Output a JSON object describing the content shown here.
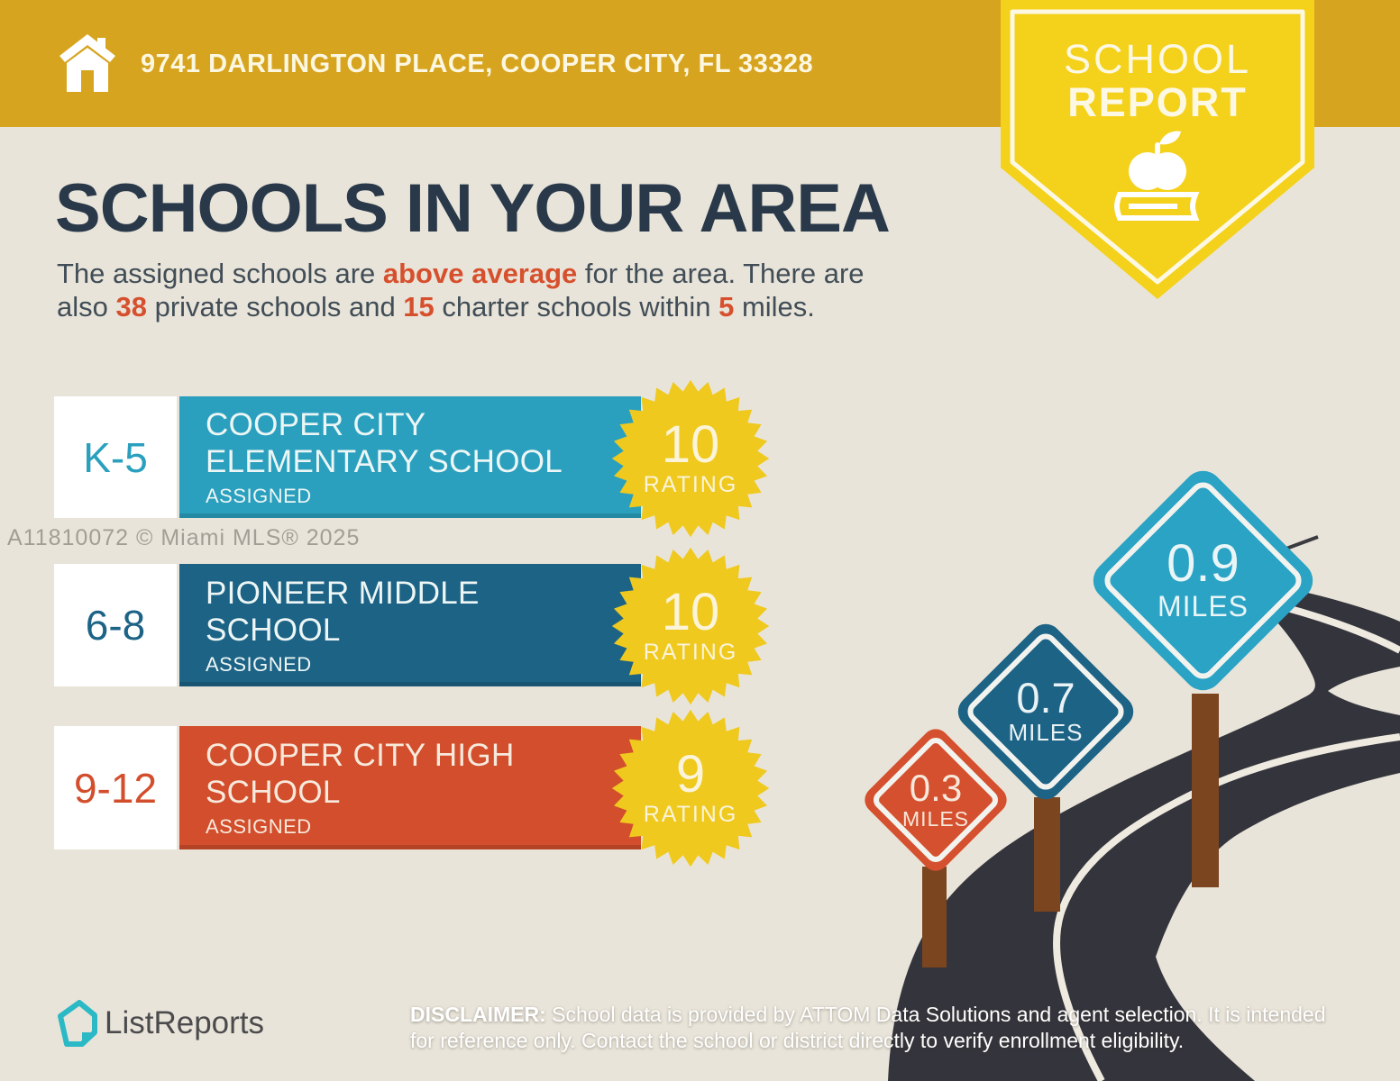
{
  "header": {
    "address": "9741 DARLINGTON PLACE, COOPER CITY, FL 33328"
  },
  "report_badge": {
    "line1": "SCHOOL",
    "line2": "REPORT",
    "icons": [
      "apple-icon",
      "book-icon"
    ]
  },
  "intro": {
    "title": "SCHOOLS IN YOUR AREA",
    "p1": "The assigned schools are ",
    "highlight1": "above average",
    "p2": " for the area. There are",
    "p3": "also ",
    "num_private": "38",
    "p4": " private schools and ",
    "num_charter": "15",
    "p5": " charter schools within ",
    "num_miles": "5",
    "p6": " miles."
  },
  "schools": [
    {
      "grades": "K-5",
      "name_line1": "COOPER CITY",
      "name_line2": "ELEMENTARY SCHOOL",
      "status": "ASSIGNED",
      "rating": "10",
      "rating_label": "RATING",
      "color": "#2AA0BE"
    },
    {
      "grades": "6-8",
      "name_line1": "PIONEER MIDDLE",
      "name_line2": "SCHOOL",
      "status": "ASSIGNED",
      "rating": "10",
      "rating_label": "RATING",
      "color": "#1D6386"
    },
    {
      "grades": "9-12",
      "name_line1": "COOPER CITY HIGH",
      "name_line2": "SCHOOL",
      "status": "ASSIGNED",
      "rating": "9",
      "rating_label": "RATING",
      "color": "#D24E2C"
    }
  ],
  "watermark": "A11810072 © Miami MLS® 2025",
  "signs": [
    {
      "distance": "0.3",
      "unit": "MILES",
      "color": "#D4502E"
    },
    {
      "distance": "0.7",
      "unit": "MILES",
      "color": "#1D6385"
    },
    {
      "distance": "0.9",
      "unit": "MILES",
      "color": "#2BA3C4"
    }
  ],
  "footer": {
    "brand": "ListReports",
    "disclaimer_label": "DISCLAIMER:",
    "disclaimer_line1": " School data is provided by ATTOM Data Solutions and agent selection. It is intended",
    "disclaimer_line2": "for reference only. Contact the school or district directly to verify enrollment eligibility."
  },
  "colors": {
    "background": "#E9E4D9",
    "header_gold": "#D7A41F",
    "ribbon_yellow": "#F4D11B",
    "starburst_yellow": "#EFC91E",
    "title_navy": "#29394A",
    "accent_orange": "#D6502E",
    "road_dark": "#34343C",
    "road_line": "#EFEADF",
    "post_brown": "#7B4520",
    "brand_teal": "#2CB9C6"
  }
}
